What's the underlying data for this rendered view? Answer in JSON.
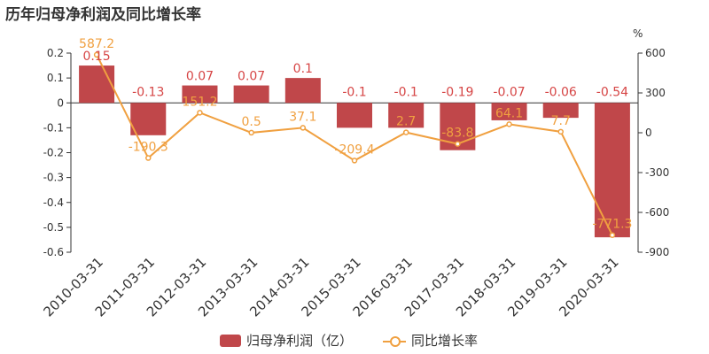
{
  "title": "历年归母净利润及同比增长率",
  "chart_data": {
    "type": "bar+line",
    "categories": [
      "2010-03-31",
      "2011-03-31",
      "2012-03-31",
      "2013-03-31",
      "2014-03-31",
      "2015-03-31",
      "2016-03-31",
      "2017-03-31",
      "2018-03-31",
      "2019-03-31",
      "2020-03-31"
    ],
    "series": [
      {
        "name": "归母净利润（亿）",
        "type": "bar",
        "axis": "left",
        "values": [
          0.15,
          -0.13,
          0.07,
          0.07,
          0.1,
          -0.1,
          -0.1,
          -0.19,
          -0.07,
          -0.06,
          -0.54
        ],
        "labels": [
          "0.15",
          "-0.13",
          "0.07",
          "0.07",
          "0.1",
          "-0.1",
          "-0.1",
          "-0.19",
          "-0.07",
          "-0.06",
          "-0.54"
        ]
      },
      {
        "name": "同比增长率",
        "type": "line",
        "axis": "right",
        "values": [
          587.2,
          -190.3,
          151.2,
          0.5,
          37.1,
          -209.4,
          2.7,
          -83.8,
          64.1,
          7.7,
          -771.3
        ],
        "labels": [
          "587.2",
          "-190.3",
          "151.2",
          "0.5",
          "37.1",
          "-209.4",
          "2.7",
          "-83.8",
          "64.1",
          "7.7",
          "-771.3"
        ]
      }
    ],
    "y_left": {
      "min": -0.6,
      "max": 0.2,
      "ticks": [
        "0.2",
        "0.1",
        "0",
        "-0.1",
        "-0.2",
        "-0.3",
        "-0.4",
        "-0.5",
        "-0.6"
      ]
    },
    "y_right": {
      "min": -900,
      "max": 600,
      "unit": "%",
      "ticks": [
        "600",
        "300",
        "0",
        "-300",
        "-600",
        "-900"
      ]
    },
    "legend_position": "bottom",
    "colors": {
      "bar": "#c0474a",
      "line": "#f0a040",
      "bar_label": "#d64545",
      "axis": "#333333"
    }
  }
}
